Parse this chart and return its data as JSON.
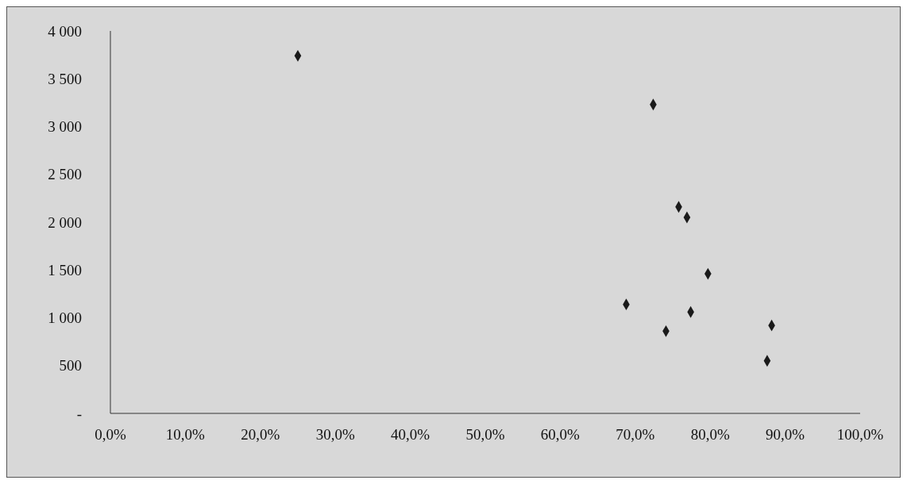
{
  "chart_data": {
    "type": "scatter",
    "x": [
      25.0,
      72.4,
      75.8,
      76.9,
      79.7,
      68.8,
      77.4,
      74.1,
      88.2,
      87.6
    ],
    "series": [
      {
        "color": "#1a1a1a",
        "values": [
          3740,
          3230,
          2160,
          2050,
          1460,
          1140,
          1060,
          860,
          920,
          550
        ]
      }
    ],
    "xlim": [
      0,
      100
    ],
    "xticks": [
      {
        "value": 0,
        "label": "0,0%"
      },
      {
        "value": 10,
        "label": "10,0%"
      },
      {
        "value": 20,
        "label": "20,0%"
      },
      {
        "value": 30,
        "label": "30,0%"
      },
      {
        "value": 40,
        "label": "40,0%"
      },
      {
        "value": 50,
        "label": "50,0%"
      },
      {
        "value": 60,
        "label": "60,0%"
      },
      {
        "value": 70,
        "label": "70,0%"
      },
      {
        "value": 80,
        "label": "80,0%"
      },
      {
        "value": 90,
        "label": "90,0%"
      },
      {
        "value": 100,
        "label": "100,0%"
      }
    ],
    "ylim": [
      0,
      4000
    ],
    "yticks": [
      {
        "value": 0,
        "label": "-"
      },
      {
        "value": 500,
        "label": "500"
      },
      {
        "value": 1000,
        "label": "1 000"
      },
      {
        "value": 1500,
        "label": "1 500"
      },
      {
        "value": 2000,
        "label": "2 000"
      },
      {
        "value": 2500,
        "label": "2 500"
      },
      {
        "value": 3000,
        "label": "3 000"
      },
      {
        "value": 3500,
        "label": "3 500"
      },
      {
        "value": 4000,
        "label": "4 000"
      }
    ],
    "grid": false,
    "marker": "diamond"
  }
}
